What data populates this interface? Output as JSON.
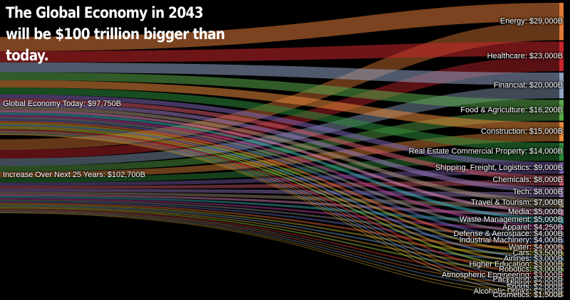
{
  "title": "The Global Economy in 2043 will be $100 trillion bigger than today.",
  "chart_data": {
    "type": "sankey",
    "sources": [
      {
        "label": "Global Economy Today: $97,750B",
        "value": 97750
      },
      {
        "label": "Increase Over Next 25 Years: $102,700B",
        "value": 102700
      }
    ],
    "targets": [
      {
        "label": "Energy: $29,000B",
        "value": 29000,
        "color": "#e07a38"
      },
      {
        "label": "Healthcare: $23,000B",
        "value": 23000,
        "color": "#c8262c"
      },
      {
        "label": "Financial: $20,000B",
        "value": 20000,
        "color": "#8fa3c2"
      },
      {
        "label": "Food & Agriculture: $16,200B",
        "value": 16200,
        "color": "#5aa84a"
      },
      {
        "label": "Construction: $15,000B",
        "value": 15000,
        "color": "#e8893a"
      },
      {
        "label": "Real Estate Commercial Property: $14,000B",
        "value": 14000,
        "color": "#2e8b3a"
      },
      {
        "label": "Shipping, Freight, Logistics: $9,000B",
        "value": 9000,
        "color": "#7b62b0"
      },
      {
        "label": "Chemicals: $8,000B",
        "value": 8000,
        "color": "#d45a6a"
      },
      {
        "label": "Tech: $8,000B",
        "value": 8000,
        "color": "#9a7ac0"
      },
      {
        "label": "Travel & Tourism: $7,000B",
        "value": 7000,
        "color": "#a8927a"
      },
      {
        "label": "Media: $5,000B",
        "value": 5000,
        "color": "#e08ac0"
      },
      {
        "label": "Waste Management: $5,000B",
        "value": 5000,
        "color": "#3ab0b8"
      },
      {
        "label": "Apparel: $4,250B",
        "value": 4250,
        "color": "#c040a0"
      },
      {
        "label": "Defense & Aerospace: $4,000B",
        "value": 4000,
        "color": "#888888"
      },
      {
        "label": "Industrial Machinery: $4,000B",
        "value": 4000,
        "color": "#5a6ab0"
      },
      {
        "label": "Water: $4,000B",
        "value": 4000,
        "color": "#e86a3a"
      },
      {
        "label": "Cars: $3,500B",
        "value": 3500,
        "color": "#b8b030"
      },
      {
        "label": "Airlines: $3,000B",
        "value": 3000,
        "color": "#6a9ad0"
      },
      {
        "label": "Higher Education: $3,000B",
        "value": 3000,
        "color": "#d0a030"
      },
      {
        "label": "Robotics: $3,000B",
        "value": 3000,
        "color": "#a0c840"
      },
      {
        "label": "Atmospheric Engineering: $3,000B",
        "value": 3000,
        "color": "#d03030"
      },
      {
        "label": "Packaging: $2,000B",
        "value": 2000,
        "color": "#909090"
      },
      {
        "label": "Mining: $2,000B",
        "value": 2000,
        "color": "#e07a30"
      },
      {
        "label": "Sports: $2,000B",
        "value": 2000,
        "color": "#7090c0"
      },
      {
        "label": "Alcoholic Drinks: $2,000B",
        "value": 2000,
        "color": "#c0a040"
      },
      {
        "label": "Cosmetics: $1,500B",
        "value": 1500,
        "color": "#d0a030"
      }
    ]
  }
}
